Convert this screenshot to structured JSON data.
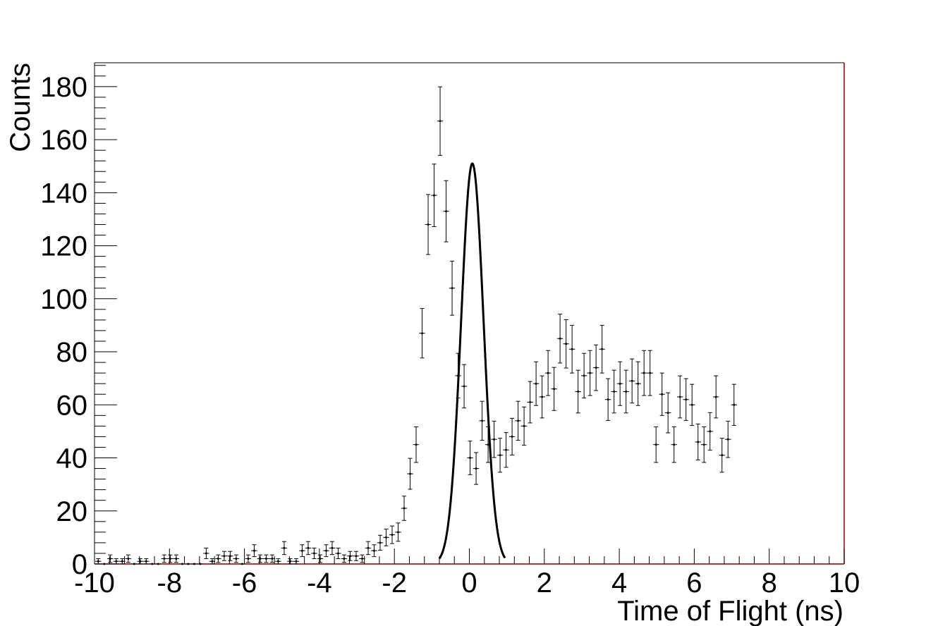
{
  "chart_data": {
    "type": "scatter",
    "title": "",
    "xlabel": "Time of Flight (ns)",
    "ylabel": "Counts",
    "xlim": [
      -10,
      10
    ],
    "ylim": [
      0,
      189
    ],
    "x_ticks": [
      -10,
      -8,
      -6,
      -4,
      -2,
      0,
      2,
      4,
      6,
      8,
      10
    ],
    "y_ticks": [
      0,
      20,
      40,
      60,
      80,
      100,
      120,
      140,
      160,
      180
    ],
    "x_tick_labels": [
      "-10",
      "-8",
      "-6",
      "-4",
      "-2",
      "0",
      "2",
      "4",
      "6",
      "8",
      "10"
    ],
    "y_tick_labels": [
      "0",
      "20",
      "40",
      "60",
      "80",
      "100",
      "120",
      "140",
      "160",
      "180"
    ],
    "bin_width": 0.16,
    "grid": false,
    "legend": "none",
    "colors": {
      "data": "#000000",
      "fit": "#000000",
      "frame_right_bottom": "#8b0000"
    },
    "series": [
      {
        "kind": "histogram_points",
        "points": [
          [
            -9.9,
            1
          ],
          [
            -9.74,
            0
          ],
          [
            -9.58,
            2
          ],
          [
            -9.42,
            1
          ],
          [
            -9.26,
            1
          ],
          [
            -9.1,
            2
          ],
          [
            -8.94,
            0
          ],
          [
            -8.78,
            1
          ],
          [
            -8.62,
            1
          ],
          [
            -8.46,
            0
          ],
          [
            -8.3,
            0
          ],
          [
            -8.14,
            2
          ],
          [
            -7.98,
            2
          ],
          [
            -7.82,
            2
          ],
          [
            -7.66,
            0
          ],
          [
            -7.5,
            0
          ],
          [
            -7.34,
            0
          ],
          [
            -7.18,
            0
          ],
          [
            -7.02,
            4
          ],
          [
            -6.86,
            1
          ],
          [
            -6.7,
            2
          ],
          [
            -6.54,
            3
          ],
          [
            -6.38,
            3
          ],
          [
            -6.22,
            2
          ],
          [
            -6.06,
            0
          ],
          [
            -5.9,
            2
          ],
          [
            -5.74,
            5
          ],
          [
            -5.58,
            2
          ],
          [
            -5.42,
            2
          ],
          [
            -5.26,
            2
          ],
          [
            -5.1,
            1
          ],
          [
            -4.94,
            6
          ],
          [
            -4.78,
            1
          ],
          [
            -4.62,
            1
          ],
          [
            -4.46,
            5
          ],
          [
            -4.3,
            6
          ],
          [
            -4.14,
            4
          ],
          [
            -3.98,
            2
          ],
          [
            -3.82,
            5
          ],
          [
            -3.66,
            6
          ],
          [
            -3.5,
            4
          ],
          [
            -3.34,
            2
          ],
          [
            -3.18,
            3
          ],
          [
            -3.02,
            3
          ],
          [
            -2.86,
            2
          ],
          [
            -2.7,
            6
          ],
          [
            -2.54,
            5
          ],
          [
            -2.38,
            8
          ],
          [
            -2.22,
            10
          ],
          [
            -2.06,
            11
          ],
          [
            -1.9,
            12
          ],
          [
            -1.74,
            21
          ],
          [
            -1.58,
            34
          ],
          [
            -1.42,
            45
          ],
          [
            -1.26,
            87
          ],
          [
            -1.1,
            128
          ],
          [
            -0.94,
            139
          ],
          [
            -0.78,
            167
          ],
          [
            -0.62,
            133
          ],
          [
            -0.46,
            104
          ],
          [
            -0.3,
            71
          ],
          [
            -0.14,
            67
          ],
          [
            0.02,
            40
          ],
          [
            0.18,
            36
          ],
          [
            0.34,
            54
          ],
          [
            0.5,
            45
          ],
          [
            0.66,
            47
          ],
          [
            0.82,
            41
          ],
          [
            0.98,
            43
          ],
          [
            1.14,
            48
          ],
          [
            1.3,
            54
          ],
          [
            1.46,
            52
          ],
          [
            1.62,
            61
          ],
          [
            1.78,
            68
          ],
          [
            1.94,
            63
          ],
          [
            2.1,
            72
          ],
          [
            2.26,
            66
          ],
          [
            2.42,
            85
          ],
          [
            2.58,
            83
          ],
          [
            2.74,
            81
          ],
          [
            2.9,
            65
          ],
          [
            3.06,
            71
          ],
          [
            3.22,
            72
          ],
          [
            3.38,
            74
          ],
          [
            3.54,
            81
          ],
          [
            3.7,
            62
          ],
          [
            3.86,
            65
          ],
          [
            4.02,
            68
          ],
          [
            4.18,
            65
          ],
          [
            4.34,
            69
          ],
          [
            4.5,
            68
          ],
          [
            4.66,
            72
          ],
          [
            4.82,
            72
          ],
          [
            4.98,
            45
          ],
          [
            5.14,
            64
          ],
          [
            5.3,
            57
          ],
          [
            5.46,
            45
          ],
          [
            5.62,
            63
          ],
          [
            5.78,
            62
          ],
          [
            5.94,
            60
          ],
          [
            6.1,
            46
          ],
          [
            6.26,
            45
          ],
          [
            6.42,
            50
          ],
          [
            6.58,
            63
          ],
          [
            6.74,
            41
          ],
          [
            6.9,
            47
          ],
          [
            7.06,
            60
          ]
        ]
      },
      {
        "kind": "fit_curve",
        "function": "gaussian",
        "amplitude": 151,
        "mean": 0.08,
        "sigma": 0.3,
        "x_range": [
          -0.8,
          0.95
        ]
      }
    ]
  }
}
